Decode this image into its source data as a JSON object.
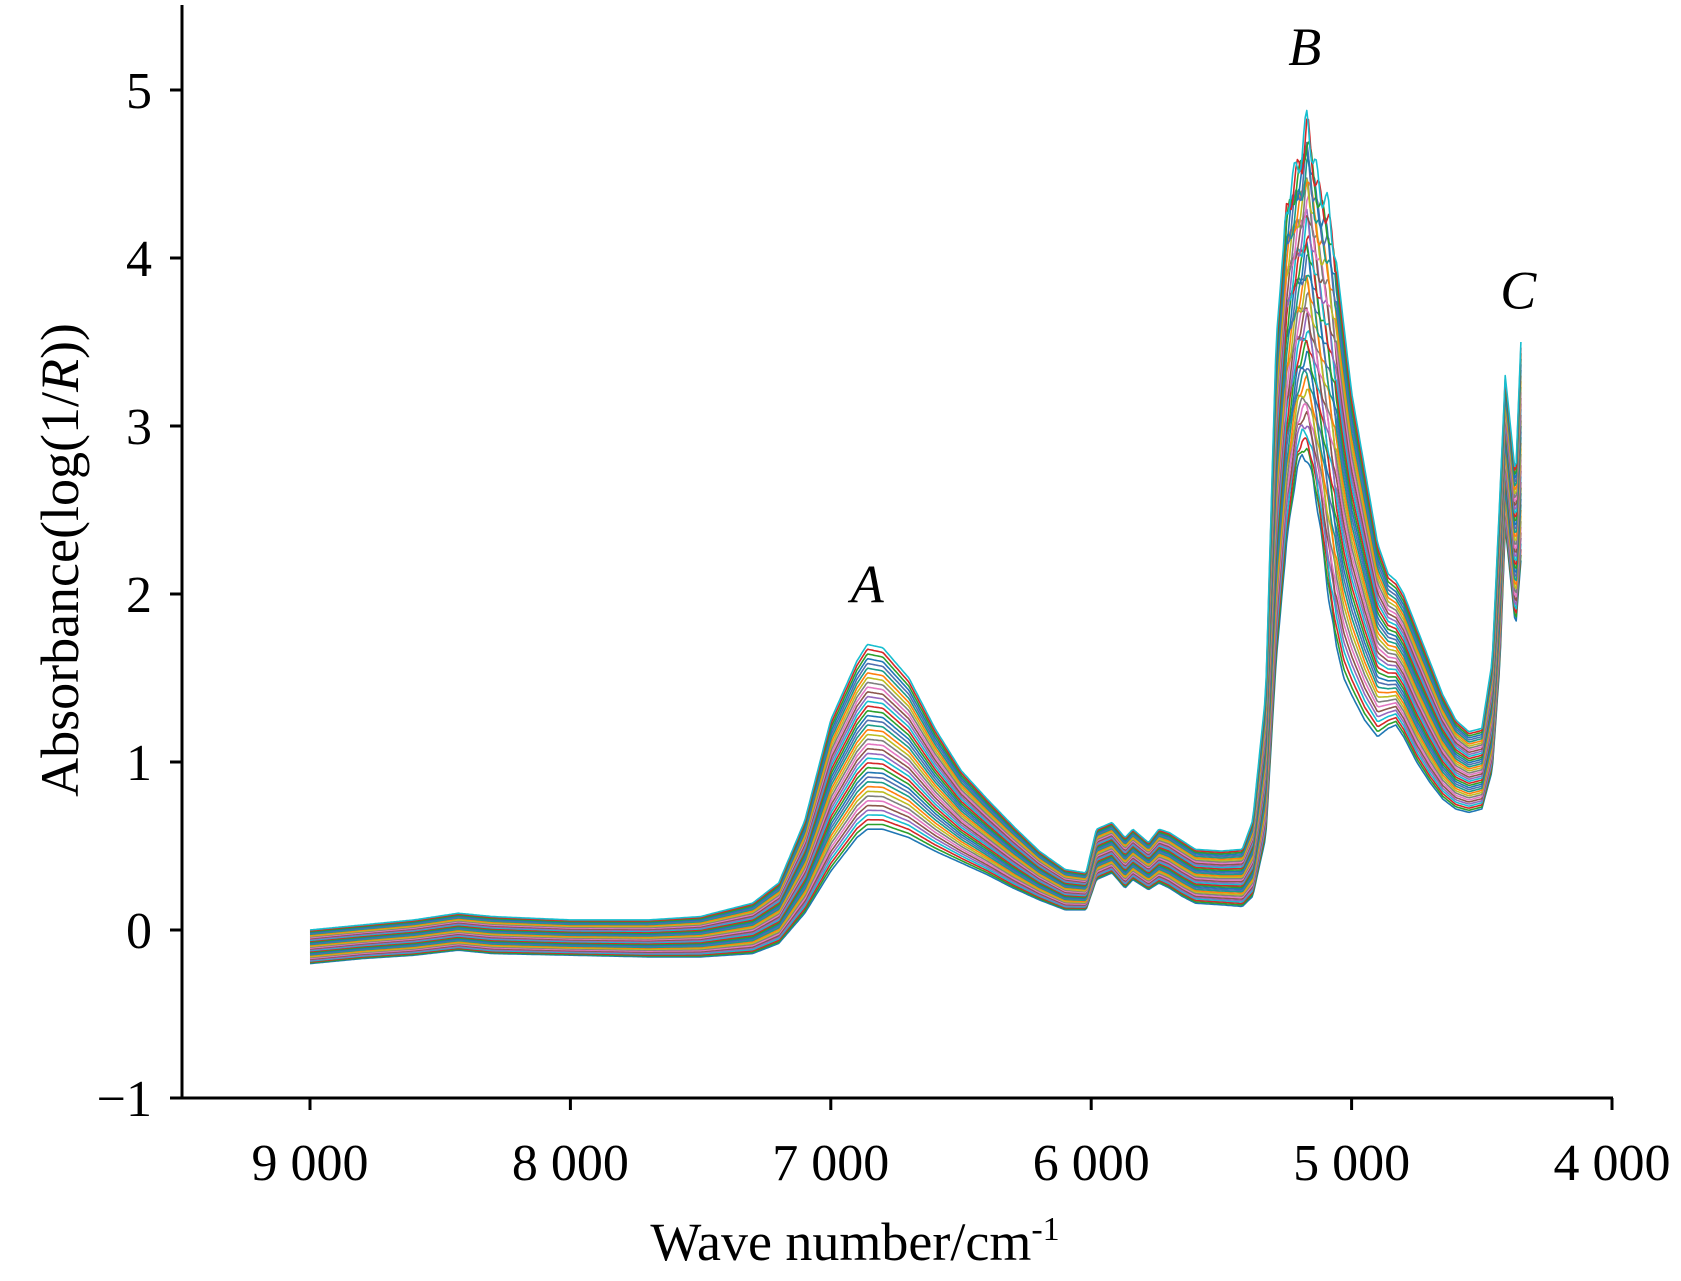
{
  "chart_data": {
    "type": "line",
    "xlabel": "Wave number/cm",
    "xlabel_superscript": "-1",
    "ylabel_prefix": "Absorbance(log(1/",
    "ylabel_italic": "R",
    "ylabel_suffix": "))",
    "xlim": [
      9500,
      4000
    ],
    "ylim": [
      -1,
      5.5
    ],
    "x_reversed": true,
    "x_ticks": [
      9000,
      8000,
      7000,
      6000,
      5000,
      4000
    ],
    "x_tick_labels": [
      "9 000",
      "8 000",
      "7 000",
      "6 000",
      "5 000",
      "4 000"
    ],
    "y_ticks": [
      -1,
      0,
      1,
      2,
      3,
      4,
      5
    ],
    "y_tick_labels": [
      "−1",
      "0",
      "1",
      "2",
      "3",
      "4",
      "5"
    ],
    "grid": false,
    "legend": "none",
    "annotations": [
      {
        "text": "A",
        "x": 6860,
        "y": 1.95
      },
      {
        "text": "B",
        "x": 5180,
        "y": 5.15
      },
      {
        "text": "C",
        "x": 4360,
        "y": 3.7
      }
    ],
    "series_count": 40,
    "series_colors": [
      "#1f77b4",
      "#2ca02c",
      "#d62728",
      "#17becf",
      "#9467bd",
      "#8c564b",
      "#e377c2",
      "#7f7f7f",
      "#bcbd22",
      "#ff7f0e",
      "#1a9c8a",
      "#4f6fb0"
    ],
    "envelope": {
      "x": [
        9000,
        8800,
        8600,
        8430,
        8300,
        8000,
        7700,
        7500,
        7300,
        7200,
        7100,
        7000,
        6900,
        6860,
        6800,
        6700,
        6600,
        6500,
        6400,
        6300,
        6200,
        6100,
        6020,
        5980,
        5920,
        5870,
        5840,
        5780,
        5740,
        5700,
        5650,
        5600,
        5500,
        5420,
        5380,
        5330,
        5290,
        5250,
        5210,
        5190,
        5170,
        5150,
        5120,
        5090,
        5060,
        5030,
        5000,
        4950,
        4900,
        4860,
        4830,
        4800,
        4750,
        4700,
        4650,
        4600,
        4550,
        4500,
        4460,
        4430,
        4410,
        4390,
        4370,
        4350
      ],
      "y_low": [
        -0.2,
        -0.17,
        -0.15,
        -0.12,
        -0.14,
        -0.15,
        -0.16,
        -0.16,
        -0.14,
        -0.08,
        0.1,
        0.35,
        0.55,
        0.6,
        0.6,
        0.55,
        0.47,
        0.4,
        0.33,
        0.25,
        0.18,
        0.12,
        0.12,
        0.3,
        0.34,
        0.25,
        0.3,
        0.24,
        0.28,
        0.25,
        0.2,
        0.16,
        0.15,
        0.14,
        0.2,
        0.55,
        1.6,
        2.3,
        2.75,
        2.82,
        2.8,
        2.7,
        2.4,
        2.0,
        1.7,
        1.5,
        1.4,
        1.25,
        1.15,
        1.2,
        1.22,
        1.15,
        1.0,
        0.88,
        0.78,
        0.72,
        0.7,
        0.72,
        0.95,
        1.6,
        2.4,
        2.1,
        1.8,
        2.2
      ],
      "y_high": [
        0.0,
        0.03,
        0.06,
        0.1,
        0.08,
        0.06,
        0.06,
        0.08,
        0.16,
        0.28,
        0.65,
        1.25,
        1.6,
        1.7,
        1.68,
        1.5,
        1.2,
        0.95,
        0.78,
        0.62,
        0.47,
        0.36,
        0.34,
        0.6,
        0.64,
        0.55,
        0.6,
        0.52,
        0.6,
        0.58,
        0.53,
        0.48,
        0.47,
        0.48,
        0.65,
        1.4,
        3.5,
        4.3,
        4.55,
        4.62,
        4.85,
        4.6,
        4.4,
        4.3,
        4.0,
        3.6,
        3.2,
        2.75,
        2.3,
        2.12,
        2.08,
        2.0,
        1.8,
        1.6,
        1.4,
        1.25,
        1.18,
        1.2,
        1.6,
        2.6,
        3.3,
        3.0,
        2.7,
        3.5
      ]
    }
  }
}
